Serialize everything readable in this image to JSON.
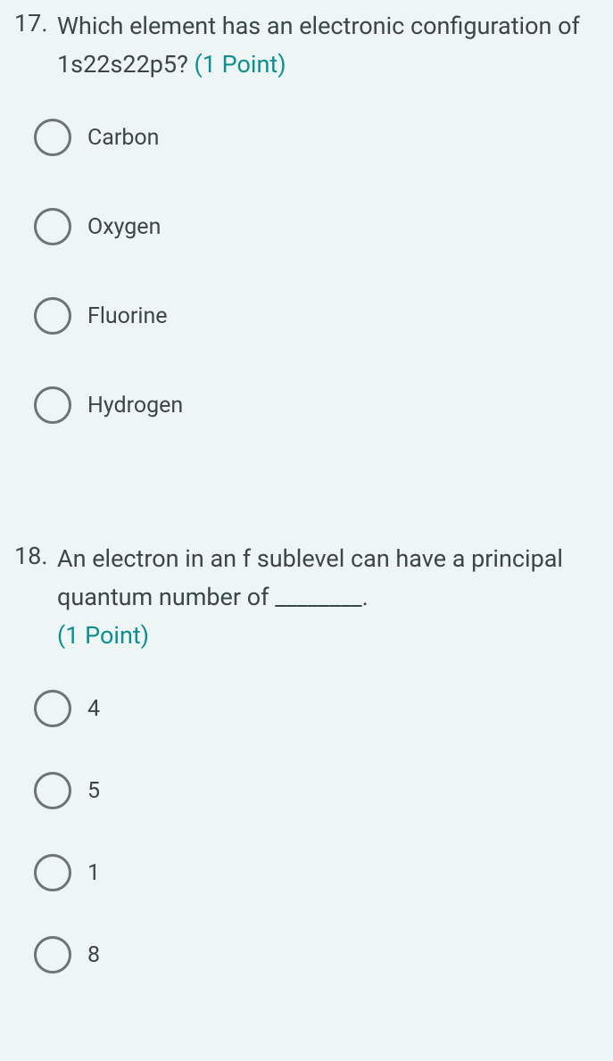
{
  "q17": {
    "number": "17.",
    "text": "Which element has an electronic configuration of 1s22s22p5? ",
    "points": "(1 Point)",
    "options": [
      "Carbon",
      "Oxygen",
      "Fluorine",
      "Hydrogen"
    ]
  },
  "q18": {
    "number": "18.",
    "text": "An electron in an f sublevel can have a principal quantum number of ________. ",
    "points": "(1 Point)",
    "options": [
      "4",
      "5",
      "1",
      "8"
    ]
  },
  "colors": {
    "background": "#eef5f5",
    "text": "#3a4749",
    "points": "#0d8f8f",
    "radio_border": "#6a7577"
  },
  "typography": {
    "question_fontsize": 27,
    "option_fontsize": 25
  }
}
